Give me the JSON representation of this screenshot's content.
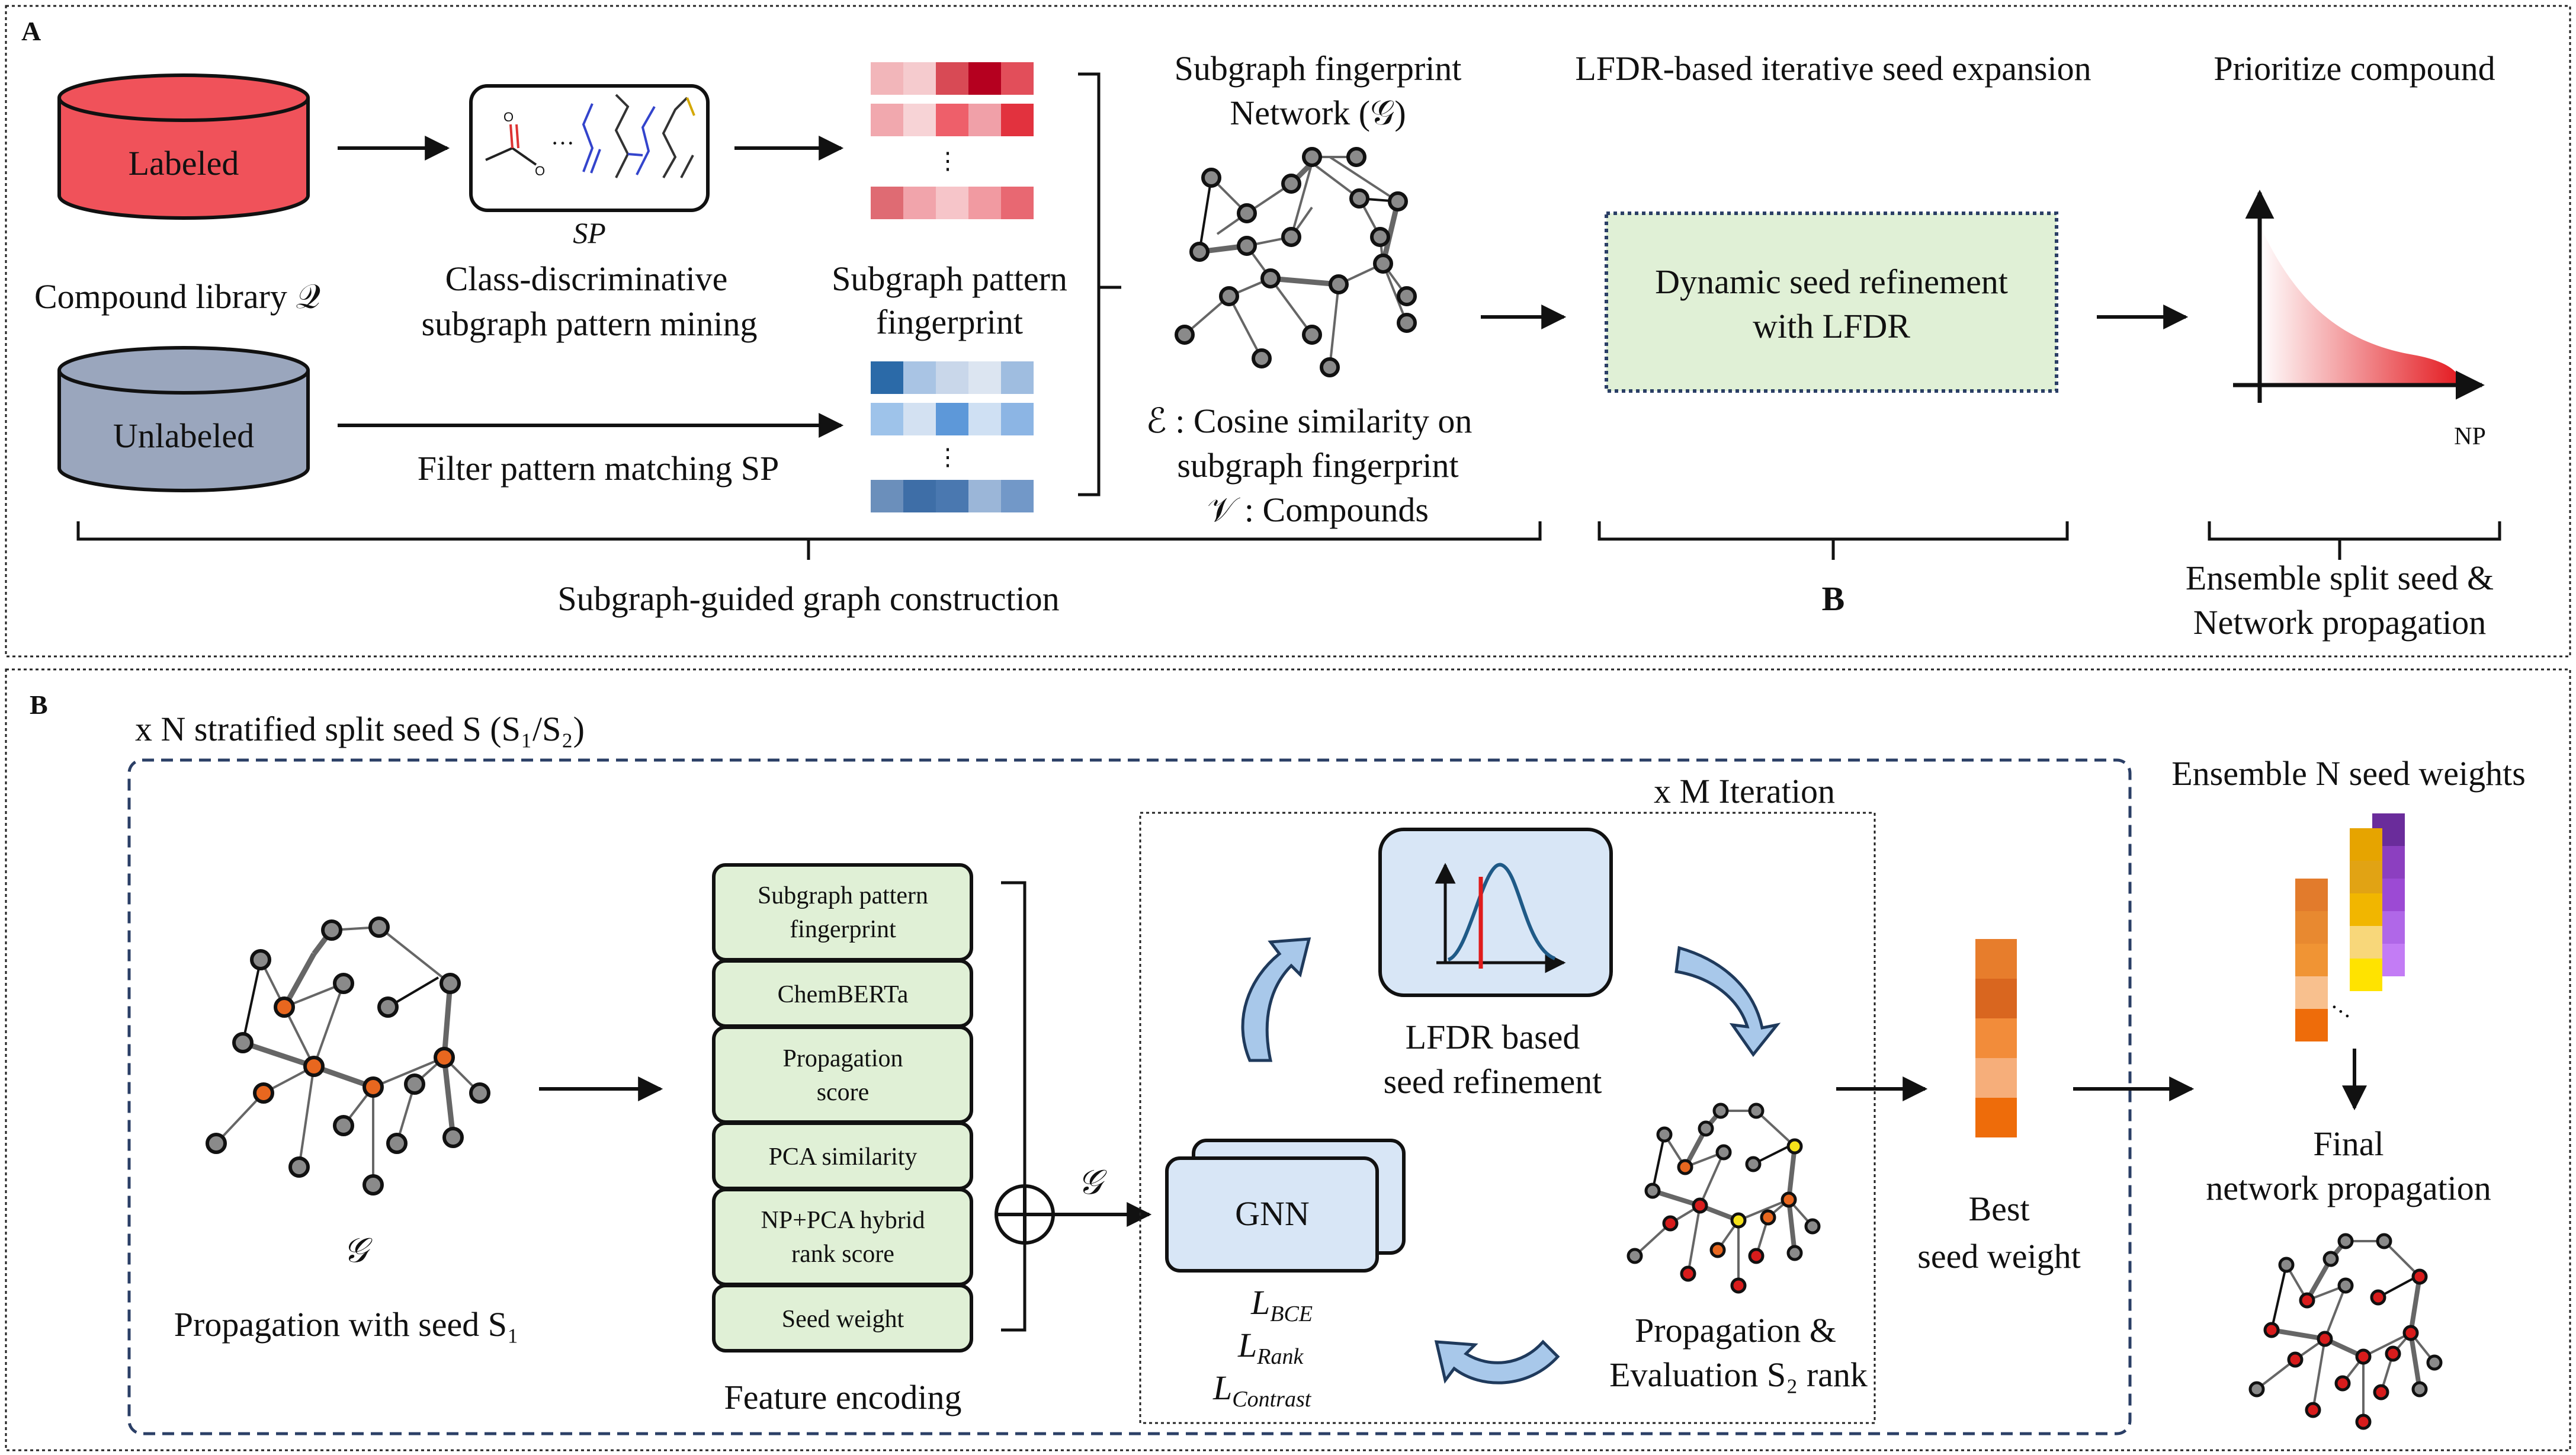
{
  "panel_a": {
    "letter": "A",
    "labeled": "Labeled",
    "unlabeled": "Unlabeled",
    "compound_library": "Compound library 𝒬",
    "sp_label": "SP",
    "mining": [
      "Class-discriminative",
      "subgraph pattern mining"
    ],
    "filter": "Filter pattern matching SP",
    "fp_title": [
      "Subgraph pattern",
      "fingerprint"
    ],
    "network_title": [
      "Subgraph fingerprint",
      "Network (𝒢)"
    ],
    "edge_def": [
      "ℰ : Cosine similarity on",
      "subgraph fingerprint"
    ],
    "vertex_def": "𝒱 : Compounds",
    "lfdr_title": "LFDR-based iterative seed expansion",
    "dynamic_box": [
      "Dynamic seed refinement",
      "with LFDR"
    ],
    "prioritize": "Prioritize compound",
    "np_axis": "NP",
    "section_construction": "Subgraph-guided graph construction",
    "section_b": "B",
    "section_ensemble": [
      "Ensemble split seed &",
      "Network propagation"
    ]
  },
  "panel_b": {
    "letter": "B",
    "stratified": "x N stratified split seed S (S₁/S₂)",
    "iteration": "x M Iteration",
    "graph_symbol": "𝒢",
    "propagation_seed": "Propagation with seed S₁",
    "features": [
      [
        "Subgraph pattern",
        "fingerprint"
      ],
      [
        "ChemBERTa"
      ],
      [
        "Propagation",
        "score"
      ],
      [
        "PCA similarity"
      ],
      [
        "NP+PCA hybrid",
        "rank score"
      ],
      [
        "Seed weight"
      ]
    ],
    "feature_encoding": "Feature encoding",
    "g_label": "𝒢",
    "gnn": "GNN",
    "losses": [
      "L",
      "L",
      "L"
    ],
    "loss_subs": [
      "BCE",
      "Rank",
      "Contrast"
    ],
    "lfdr_refine": [
      "LFDR based",
      "seed refinement"
    ],
    "prop_eval": [
      "Propagation &",
      "Evaluation S₂ rank"
    ],
    "best_seed": [
      "Best",
      "seed weight"
    ],
    "ensemble_weights": "Ensemble N seed weights",
    "final_prop": [
      "Final",
      "network propagation"
    ]
  },
  "colors": {
    "labeled": "#f0525a",
    "unlabeled": "#9aa6bd",
    "green_box": "#e0f0d6",
    "gnn_box": "#d8e6f6",
    "orange_node": "#e8671f",
    "red_node": "#d81c1c",
    "yellow_node": "#f5e21b",
    "gray_node": "#888888"
  }
}
